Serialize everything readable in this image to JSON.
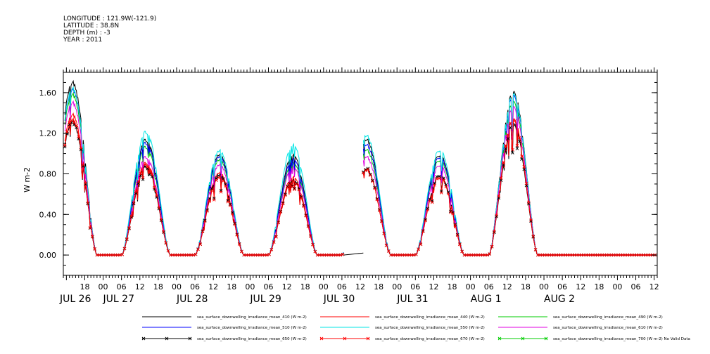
{
  "header": {
    "longitude": "LONGITUDE : 121.9W(-121.9)",
    "latitude": "LATITUDE : 38.8N",
    "depth": "DEPTH (m) : -3",
    "year": "YEAR : 2011"
  },
  "chart_data": {
    "type": "line",
    "ylabel": "W m-2",
    "ylim": [
      -0.2,
      1.8
    ],
    "y_ticks": [
      0.0,
      0.4,
      0.8,
      1.2,
      1.6
    ],
    "y_tick_labels": [
      "0.00",
      "0.40",
      "0.80",
      "1.20",
      "1.60"
    ],
    "x_hour_range": [
      -13,
      181
    ],
    "x_hour_ticks": [
      -6,
      0,
      6,
      12,
      18,
      24,
      30,
      36,
      42,
      48,
      54,
      60,
      66,
      72,
      78,
      84,
      90,
      96,
      102,
      108,
      114,
      120,
      126,
      132,
      138,
      144,
      150,
      156,
      162,
      168,
      174,
      180
    ],
    "x_hour_tick_labels": [
      "18",
      "00",
      "06",
      "12",
      "18",
      "00",
      "06",
      "12",
      "18",
      "00",
      "06",
      "12",
      "18",
      "00",
      "06",
      "12",
      "18",
      "00",
      "06",
      "12",
      "18",
      "00",
      "06",
      "12",
      "18",
      "00",
      "06",
      "12",
      "18",
      "00",
      "06",
      "12"
    ],
    "date_labels": [
      {
        "hour": -24,
        "label": "JUL 26"
      },
      {
        "hour": 0,
        "label": "JUL 27"
      },
      {
        "hour": 24,
        "label": "JUL 28"
      },
      {
        "hour": 48,
        "label": "JUL 29"
      },
      {
        "hour": 72,
        "label": "JUL 30"
      },
      {
        "hour": 96,
        "label": "JUL 31"
      },
      {
        "hour": 120,
        "label": "AUG  1"
      },
      {
        "hour": 144,
        "label": "AUG  2"
      }
    ],
    "daily_peaks": [
      {
        "peak_hour": -10,
        "peaks": {
          "410": 1.72,
          "440": 1.4,
          "490": 1.6,
          "510": 1.65,
          "550": 1.66,
          "610": 1.52,
          "650": 1.33,
          "670": 1.35
        }
      },
      {
        "peak_hour": 14,
        "peaks": {
          "410": 1.15,
          "440": 0.92,
          "490": 1.08,
          "510": 1.12,
          "550": 1.23,
          "610": 0.98,
          "650": 0.88,
          "670": 0.9
        }
      },
      {
        "peak_hour": 38,
        "peaks": {
          "410": 1.0,
          "440": 0.82,
          "490": 0.95,
          "510": 0.98,
          "550": 1.04,
          "610": 0.9,
          "650": 0.8,
          "670": 0.78
        }
      },
      {
        "peak_hour": 62,
        "peaks": {
          "410": 1.0,
          "440": 0.78,
          "490": 0.92,
          "510": 0.96,
          "550": 1.1,
          "610": 0.88,
          "650": 0.75,
          "670": 0.74
        }
      },
      {
        "peak_hour": 86,
        "peaks": {
          "410": 1.15,
          "440": 0.85,
          "490": 1.05,
          "510": 1.1,
          "550": 1.19,
          "610": 0.98,
          "650": 0.86,
          "670": 0.85
        }
      },
      {
        "peak_hour": 110,
        "peaks": {
          "410": 1.0,
          "440": 0.8,
          "490": 0.95,
          "510": 0.98,
          "550": 1.05,
          "610": 0.9,
          "650": 0.8,
          "670": 0.78
        }
      },
      {
        "peak_hour": 134,
        "peaks": {
          "410": 1.62,
          "440": 1.35,
          "490": 1.52,
          "510": 1.58,
          "550": 1.6,
          "610": 1.47,
          "650": 1.3,
          "670": 1.34
        }
      }
    ],
    "gap_hours": [
      [
        78.5,
        85
      ]
    ],
    "series": [
      {
        "key": "410",
        "name": "sea_surface_downwelling_irradiance_mean_410 (W m-2)",
        "color": "#000000",
        "marker": "none"
      },
      {
        "key": "440",
        "name": "sea_surface_downwelling_irradiance_mean_440 (W m-2)",
        "color": "#ff0000",
        "marker": "none"
      },
      {
        "key": "490",
        "name": "sea_surface_downwelling_irradiance_mean_490 (W m-2)",
        "color": "#00cc00",
        "marker": "none"
      },
      {
        "key": "510",
        "name": "sea_surface_downwelling_irradiance_mean_510 (W m-2)",
        "color": "#0000ff",
        "marker": "none"
      },
      {
        "key": "550",
        "name": "sea_surface_downwelling_irradiance_mean_550 (W m-2)",
        "color": "#00e5e5",
        "marker": "none"
      },
      {
        "key": "610",
        "name": "sea_surface_downwelling_irradiance_mean_610 (W m-2)",
        "color": "#e000e0",
        "marker": "none"
      },
      {
        "key": "650",
        "name": "sea_surface_downwelling_irradiance_mean_650 (W m-2)",
        "color": "#000000",
        "marker": "x"
      },
      {
        "key": "670",
        "name": "sea_surface_downwelling_irradiance_mean_670 (W m-2)",
        "color": "#ff0000",
        "marker": "x"
      },
      {
        "key": "700",
        "name": "sea_surface_downwelling_irradiance_mean_700 (W m-2) No Valid Data",
        "color": "#00cc00",
        "marker": "x"
      }
    ]
  }
}
